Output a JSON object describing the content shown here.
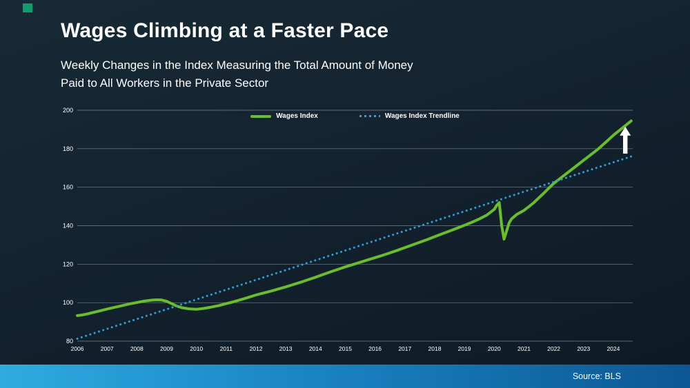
{
  "slide": {
    "title": "Wages Climbing at a Faster Pace",
    "subtitle_line1": "Weekly Changes in the Index Measuring the Total Amount of Money",
    "subtitle_line2": "Paid to All Workers in the Private Sector",
    "source_label": "Source: BLS"
  },
  "colors": {
    "background": "#12212d",
    "wages_line": "#6abf22",
    "trendline": "#2e9fd9",
    "gridline": "rgba(205,214,221,0.55)",
    "footer_gradient_left": "#2fabdf",
    "footer_gradient_right": "#0c5793",
    "corner_accent": "#0c9f6d",
    "arrow": "#ffffff"
  },
  "chart_data": {
    "type": "line",
    "title": "Weekly Changes in the Index Measuring the Total Amount of Money Paid to All Workers in the Private Sector",
    "xlabel": "",
    "ylabel": "",
    "xlim": [
      2006,
      2024.65
    ],
    "ylim": [
      80,
      200
    ],
    "yticks": [
      80,
      100,
      120,
      140,
      160,
      180,
      200
    ],
    "xticks": [
      2006,
      2007,
      2008,
      2009,
      2010,
      2011,
      2012,
      2013,
      2014,
      2015,
      2016,
      2017,
      2018,
      2019,
      2020,
      2021,
      2022,
      2023,
      2024
    ],
    "grid": "horizontal",
    "legend_position": "top-center",
    "series": [
      {
        "name": "Wages Index",
        "color": "#6abf22",
        "style": "solid",
        "points": [
          [
            2006.0,
            93.3
          ],
          [
            2006.17,
            93.6
          ],
          [
            2006.33,
            94.1
          ],
          [
            2006.5,
            94.8
          ],
          [
            2006.67,
            95.4
          ],
          [
            2006.83,
            96.0
          ],
          [
            2007.0,
            96.7
          ],
          [
            2007.25,
            97.6
          ],
          [
            2007.5,
            98.4
          ],
          [
            2007.75,
            99.3
          ],
          [
            2008.0,
            100.1
          ],
          [
            2008.25,
            100.8
          ],
          [
            2008.5,
            101.3
          ],
          [
            2008.67,
            101.5
          ],
          [
            2008.83,
            101.4
          ],
          [
            2009.0,
            100.7
          ],
          [
            2009.17,
            99.5
          ],
          [
            2009.33,
            98.3
          ],
          [
            2009.5,
            97.4
          ],
          [
            2009.75,
            96.8
          ],
          [
            2010.0,
            96.6
          ],
          [
            2010.25,
            97.0
          ],
          [
            2010.5,
            97.7
          ],
          [
            2010.75,
            98.5
          ],
          [
            2011.0,
            99.5
          ],
          [
            2011.25,
            100.5
          ],
          [
            2011.5,
            101.6
          ],
          [
            2011.75,
            102.8
          ],
          [
            2012.0,
            104.0
          ],
          [
            2012.25,
            105.0
          ],
          [
            2012.5,
            106.0
          ],
          [
            2012.75,
            107.1
          ],
          [
            2013.0,
            108.2
          ],
          [
            2013.25,
            109.4
          ],
          [
            2013.5,
            110.6
          ],
          [
            2013.75,
            111.9
          ],
          [
            2014.0,
            113.2
          ],
          [
            2014.25,
            114.6
          ],
          [
            2014.5,
            116.0
          ],
          [
            2014.75,
            117.3
          ],
          [
            2015.0,
            118.6
          ],
          [
            2015.25,
            119.8
          ],
          [
            2015.5,
            121.0
          ],
          [
            2015.75,
            122.2
          ],
          [
            2016.0,
            123.4
          ],
          [
            2016.25,
            124.6
          ],
          [
            2016.5,
            125.9
          ],
          [
            2016.75,
            127.2
          ],
          [
            2017.0,
            128.6
          ],
          [
            2017.25,
            130.0
          ],
          [
            2017.5,
            131.4
          ],
          [
            2017.75,
            132.8
          ],
          [
            2018.0,
            134.3
          ],
          [
            2018.25,
            135.8
          ],
          [
            2018.5,
            137.2
          ],
          [
            2018.75,
            138.7
          ],
          [
            2019.0,
            140.2
          ],
          [
            2019.25,
            141.8
          ],
          [
            2019.5,
            143.5
          ],
          [
            2019.75,
            145.5
          ],
          [
            2020.0,
            148.5
          ],
          [
            2020.08,
            150.5
          ],
          [
            2020.17,
            152.0
          ],
          [
            2020.25,
            140.0
          ],
          [
            2020.33,
            133.0
          ],
          [
            2020.42,
            137.5
          ],
          [
            2020.5,
            141.5
          ],
          [
            2020.58,
            143.5
          ],
          [
            2020.75,
            145.8
          ],
          [
            2021.0,
            148.0
          ],
          [
            2021.17,
            150.0
          ],
          [
            2021.33,
            152.0
          ],
          [
            2021.5,
            154.5
          ],
          [
            2021.67,
            157.0
          ],
          [
            2021.83,
            159.5
          ],
          [
            2022.0,
            162.0
          ],
          [
            2022.25,
            165.0
          ],
          [
            2022.5,
            168.0
          ],
          [
            2022.75,
            171.0
          ],
          [
            2023.0,
            174.0
          ],
          [
            2023.25,
            177.0
          ],
          [
            2023.5,
            180.0
          ],
          [
            2023.75,
            183.5
          ],
          [
            2024.0,
            187.0
          ],
          [
            2024.2,
            189.5
          ],
          [
            2024.4,
            192.0
          ],
          [
            2024.6,
            194.5
          ]
        ]
      },
      {
        "name": "Wages Index Trendline",
        "color": "#2e9fd9",
        "style": "dotted",
        "points": [
          [
            2006.0,
            81.3
          ],
          [
            2024.6,
            176.0
          ]
        ]
      }
    ],
    "annotation": {
      "type": "up-arrow",
      "x": 2024.4,
      "y_tip": 191.5,
      "y_tail": 177.5
    }
  }
}
